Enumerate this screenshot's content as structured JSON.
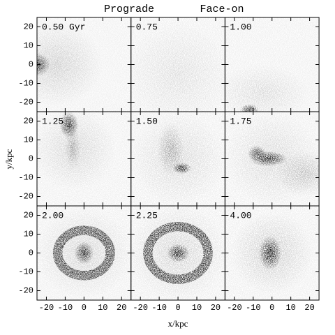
{
  "chart_data": {
    "type": "density",
    "title": "Prograde",
    "subtitle": "Face-on",
    "x_label": "x/kpc",
    "y_label": "y/kpc",
    "panels": [
      "0.50 Gyr",
      "0.75",
      "1.00",
      "1.25",
      "1.50",
      "1.75",
      "2.00",
      "2.25",
      "4.00"
    ],
    "xlim": [
      -25,
      25
    ],
    "ylim": [
      -25,
      25
    ],
    "xticks": [
      -20,
      -10,
      0,
      10,
      20
    ],
    "yticks": [
      -20,
      -10,
      0,
      10,
      20
    ]
  }
}
